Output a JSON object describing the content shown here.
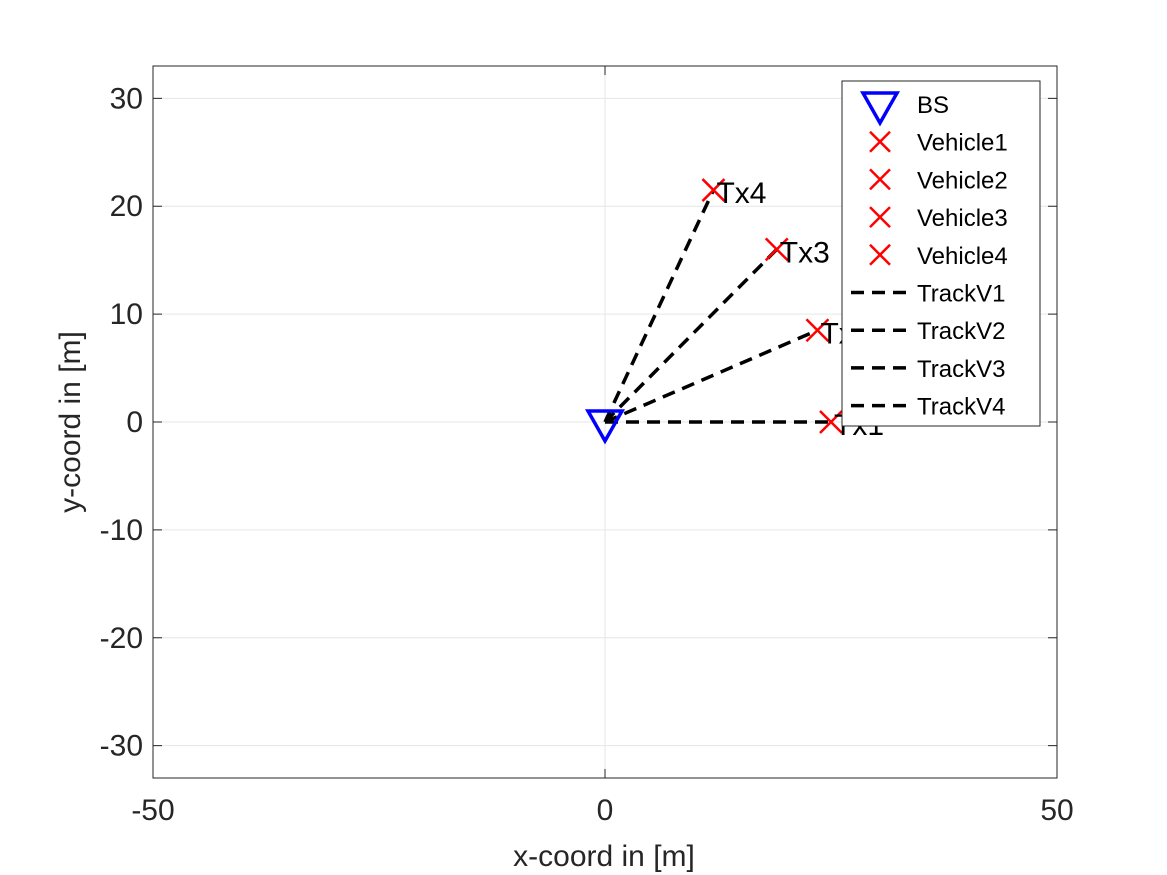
{
  "chart_data": {
    "type": "scatter",
    "title": "",
    "xlabel": "x-coord in [m]",
    "ylabel": "y-coord in [m]",
    "xlim": [
      -50,
      50
    ],
    "ylim": [
      -33,
      33
    ],
    "xticks": [
      -50,
      0,
      50
    ],
    "yticks": [
      -30,
      -20,
      -10,
      0,
      10,
      20,
      30
    ],
    "grid": true,
    "legend_position": "top-right",
    "base_station": {
      "name": "BS",
      "x": 0,
      "y": 0,
      "marker": "triangle-down-icon",
      "color": "#0000ff"
    },
    "vehicles": [
      {
        "name": "Vehicle1",
        "label": "Tx1",
        "x": 25,
        "y": 0
      },
      {
        "name": "Vehicle2",
        "label": "Tx2",
        "x": 23.5,
        "y": 8.5
      },
      {
        "name": "Vehicle3",
        "label": "Tx3",
        "x": 19,
        "y": 16
      },
      {
        "name": "Vehicle4",
        "label": "Tx4",
        "x": 12,
        "y": 21.5
      }
    ],
    "tracks": [
      {
        "name": "TrackV1",
        "from": [
          0,
          0
        ],
        "to": [
          25,
          0
        ]
      },
      {
        "name": "TrackV2",
        "from": [
          0,
          0
        ],
        "to": [
          23.5,
          8.5
        ]
      },
      {
        "name": "TrackV3",
        "from": [
          0,
          0
        ],
        "to": [
          19,
          16
        ]
      },
      {
        "name": "TrackV4",
        "from": [
          0,
          0
        ],
        "to": [
          12,
          21.5
        ]
      }
    ],
    "colors": {
      "vehicle": "#ff0000",
      "track": "#000000",
      "bs": "#0000ff",
      "grid": "#e6e6e6",
      "axis": "#262626"
    }
  }
}
